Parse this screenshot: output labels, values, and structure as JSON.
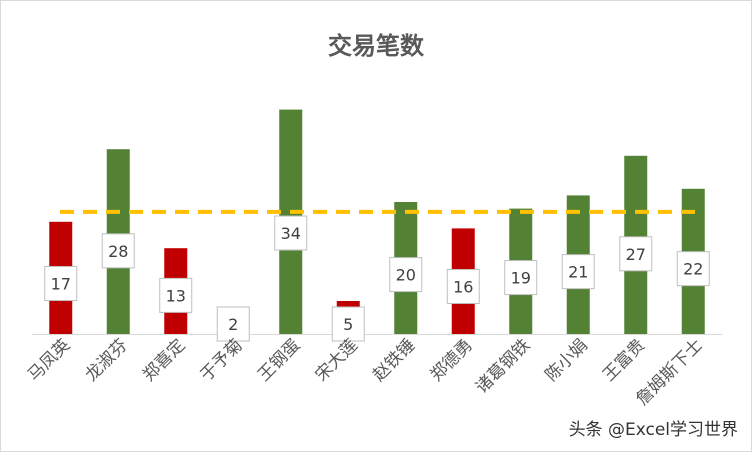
{
  "chart_data": {
    "type": "bar",
    "title": "交易笔数",
    "categories": [
      "马凤英",
      "龙淑芬",
      "郑喜定",
      "于予菊",
      "王钢蛋",
      "宋大莲",
      "赵铁锤",
      "郑德勇",
      "诸葛钢铁",
      "陈小娟",
      "王富贵",
      "詹姆斯下士"
    ],
    "values": [
      17,
      28,
      13,
      2,
      34,
      5,
      20,
      16,
      19,
      21,
      27,
      22
    ],
    "reference_line": 18.5,
    "ylim": [
      0,
      40
    ],
    "grid": false,
    "legend": "none",
    "colors": {
      "above_average": "#548235",
      "below_average": "#c00000",
      "average_line": "#ffc000",
      "label_border": "#bfbfbf",
      "label_text": "#404040",
      "axis": "#d9d9d9",
      "category_text": "#595959"
    }
  },
  "watermark": "头条 @Excel学习世界"
}
